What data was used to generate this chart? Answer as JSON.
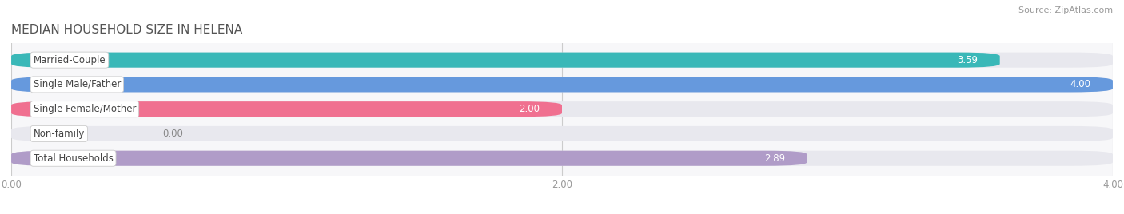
{
  "title": "MEDIAN HOUSEHOLD SIZE IN HELENA",
  "source": "Source: ZipAtlas.com",
  "categories": [
    "Married-Couple",
    "Single Male/Father",
    "Single Female/Mother",
    "Non-family",
    "Total Households"
  ],
  "values": [
    3.59,
    4.0,
    2.0,
    0.0,
    2.89
  ],
  "bar_colors": [
    "#3ab8b8",
    "#6699dd",
    "#f07090",
    "#f5c89a",
    "#b09cc8"
  ],
  "background_color": "#f7f7f9",
  "bar_bg_color": "#e8e8ee",
  "xlim": [
    0,
    4.0
  ],
  "xticks": [
    0.0,
    2.0,
    4.0
  ],
  "xtick_labels": [
    "0.00",
    "2.00",
    "4.00"
  ],
  "title_fontsize": 11,
  "label_fontsize": 8.5,
  "value_fontsize": 8.5,
  "source_fontsize": 8
}
